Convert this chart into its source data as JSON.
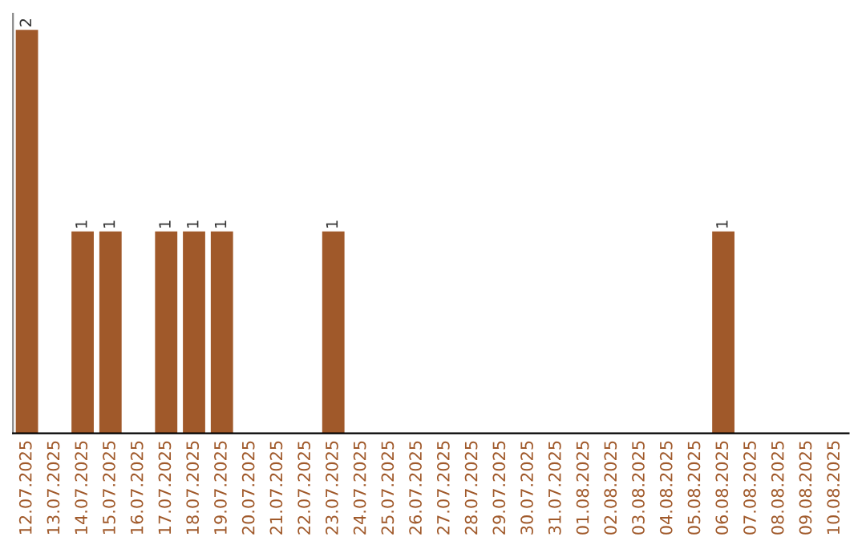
{
  "chart_data": {
    "type": "bar",
    "categories": [
      "12.07.2025",
      "13.07.2025",
      "14.07.2025",
      "15.07.2025",
      "16.07.2025",
      "17.07.2025",
      "18.07.2025",
      "19.07.2025",
      "20.07.2025",
      "21.07.2025",
      "22.07.2025",
      "23.07.2025",
      "24.07.2025",
      "25.07.2025",
      "26.07.2025",
      "27.07.2025",
      "28.07.2025",
      "29.07.2025",
      "30.07.2025",
      "31.07.2025",
      "01.08.2025",
      "02.08.2025",
      "03.08.2025",
      "04.08.2025",
      "05.08.2025",
      "06.08.2025",
      "07.08.2025",
      "08.08.2025",
      "09.08.2025",
      "10.08.2025"
    ],
    "values": [
      2,
      0,
      1,
      1,
      0,
      1,
      1,
      1,
      0,
      0,
      0,
      1,
      0,
      0,
      0,
      0,
      0,
      0,
      0,
      0,
      0,
      0,
      0,
      0,
      0,
      1,
      0,
      0,
      0,
      0
    ],
    "value_labels": [
      "2",
      null,
      "1",
      "1",
      null,
      "1",
      "1",
      "1",
      null,
      null,
      null,
      "1",
      null,
      null,
      null,
      null,
      null,
      null,
      null,
      null,
      null,
      null,
      null,
      null,
      null,
      "1",
      null,
      null,
      null,
      null
    ],
    "color": "#a0592a",
    "tick_labels": "x",
    "grid": false,
    "legend": false
  }
}
